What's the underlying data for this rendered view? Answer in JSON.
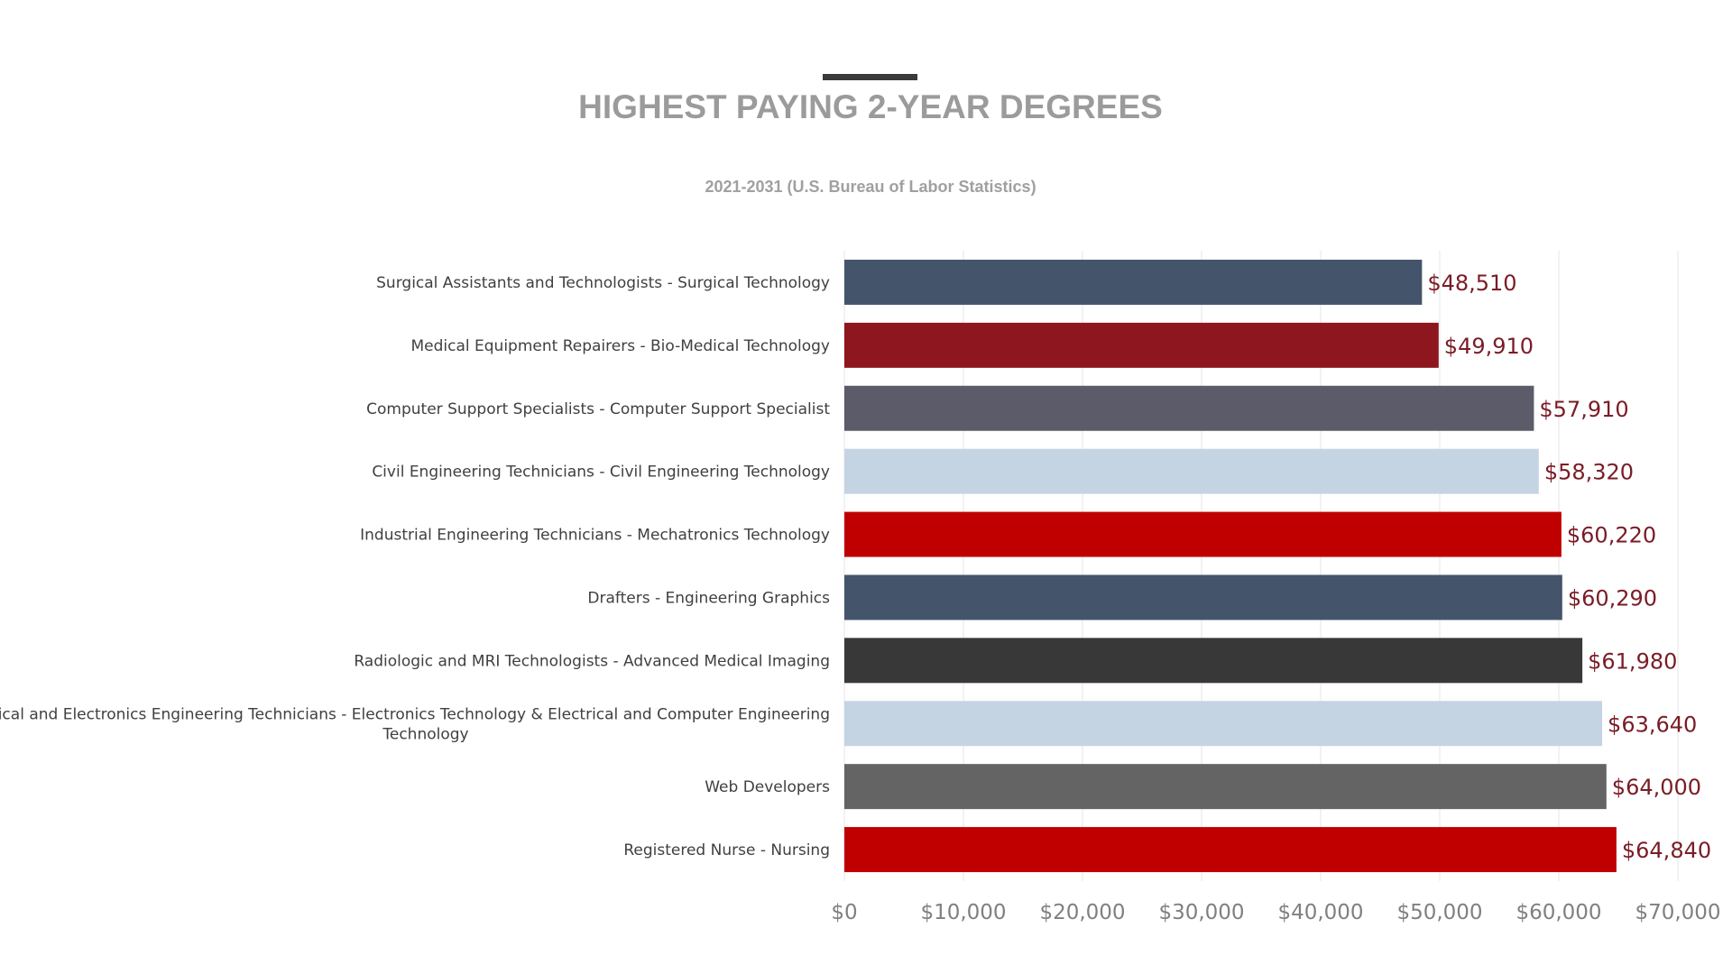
{
  "chart_data": {
    "type": "bar",
    "orientation": "horizontal",
    "title": "HIGHEST PAYING 2-YEAR DEGREES",
    "subtitle": "2021-2031 (U.S. Bureau of Labor Statistics)",
    "xlim": [
      0,
      70000
    ],
    "grid": true,
    "ticks": [
      0,
      10000,
      20000,
      30000,
      40000,
      50000,
      60000,
      70000
    ],
    "tick_labels": [
      "$0",
      "$10,000",
      "$20,000",
      "$30,000",
      "$40,000",
      "$50,000",
      "$60,000",
      "$70,000"
    ],
    "bars": [
      {
        "label": [
          "Surgical Assistants and Technologists - Surgical Technology"
        ],
        "value": 48510,
        "value_label": "$48,510",
        "color": "#44546a"
      },
      {
        "label": [
          "Medical Equipment Repairers - Bio-Medical Technology"
        ],
        "value": 49910,
        "value_label": "$49,910",
        "color": "#8e161e"
      },
      {
        "label": [
          "Computer Support Specialists - Computer Support Specialist"
        ],
        "value": 57910,
        "value_label": "$57,910",
        "color": "#5b5b69"
      },
      {
        "label": [
          "Civil Engineering Technicians - Civil Engineering Technology"
        ],
        "value": 58320,
        "value_label": "$58,320",
        "color": "#c5d4e3"
      },
      {
        "label": [
          "Industrial Engineering Technicians - Mechatronics Technology"
        ],
        "value": 60220,
        "value_label": "$60,220",
        "color": "#c00000"
      },
      {
        "label": [
          "Drafters - Engineering Graphics"
        ],
        "value": 60290,
        "value_label": "$60,290",
        "color": "#44546a"
      },
      {
        "label": [
          "Radiologic and MRI Technologists - Advanced Medical Imaging"
        ],
        "value": 61980,
        "value_label": "$61,980",
        "color": "#383838"
      },
      {
        "label": [
          "Electrical and Electronics Engineering Technicians - Electronics Technology & Electrical and Computer Engineering",
          "Technology"
        ],
        "value": 63640,
        "value_label": "$63,640",
        "color": "#c5d4e3"
      },
      {
        "label": [
          "Web Developers"
        ],
        "value": 64000,
        "value_label": "$64,000",
        "color": "#646464"
      },
      {
        "label": [
          "Registered Nurse - Nursing"
        ],
        "value": 64840,
        "value_label": "$64,840",
        "color": "#c00000"
      }
    ]
  }
}
